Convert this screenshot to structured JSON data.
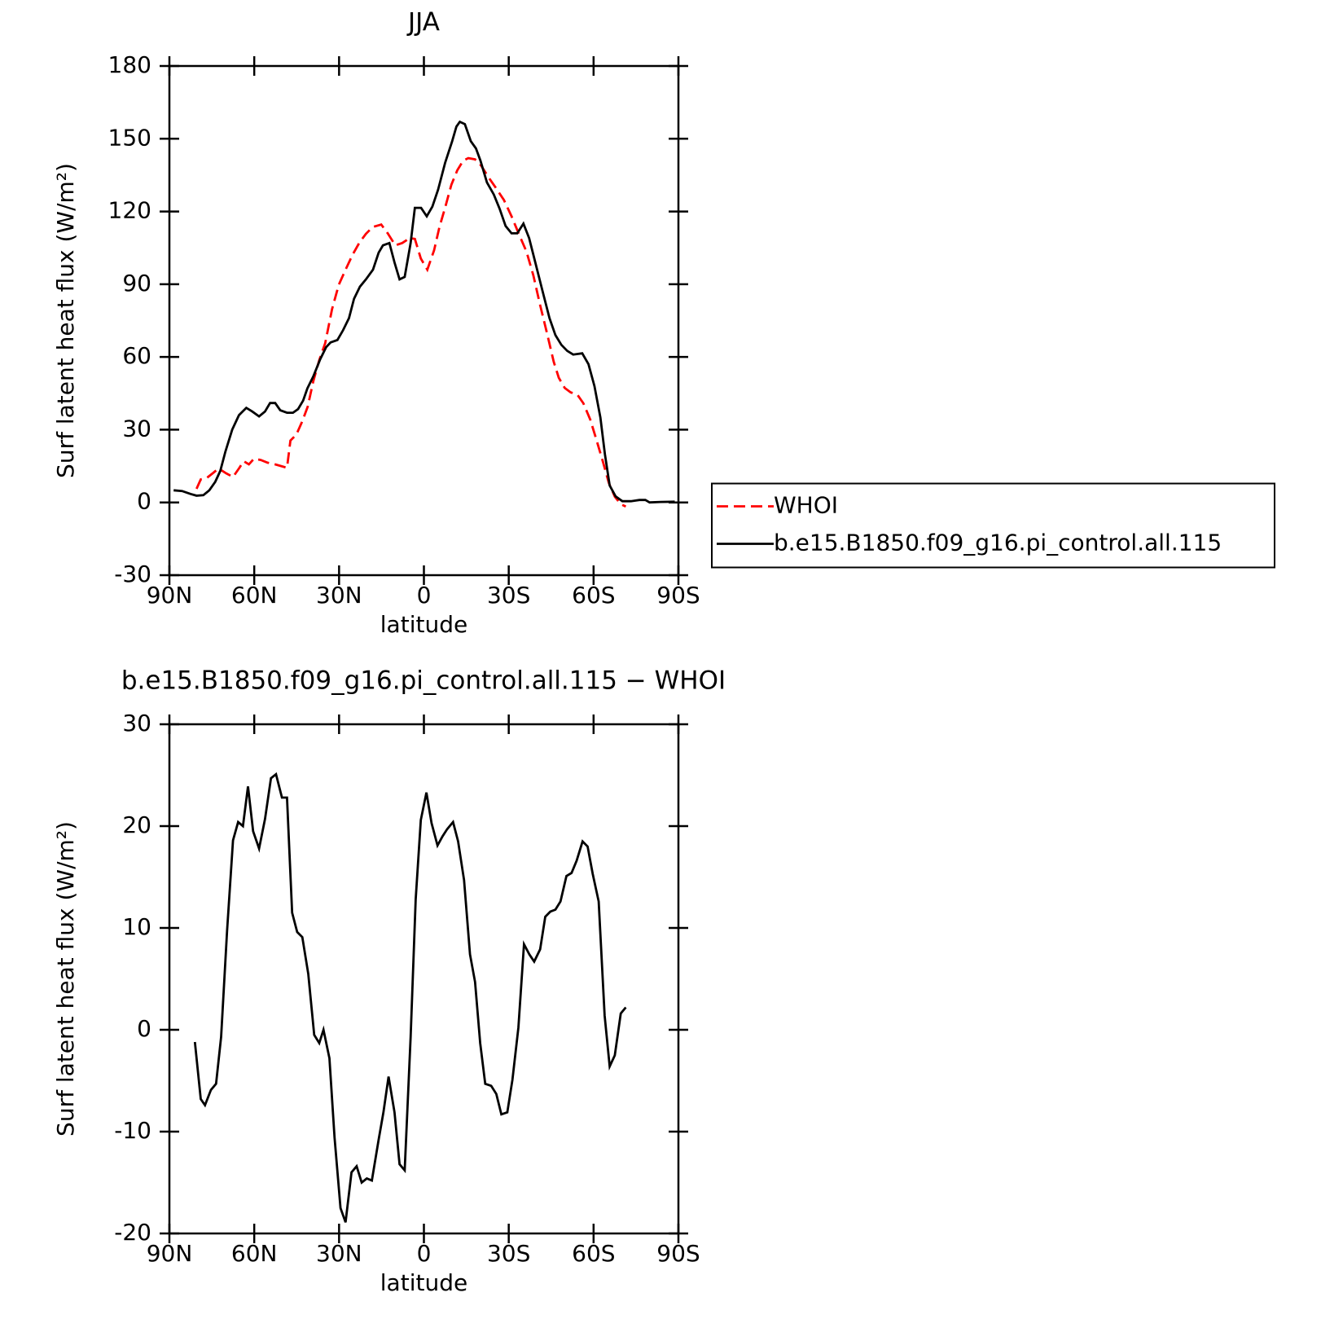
{
  "chart_data": [
    {
      "type": "line",
      "title": "JJA",
      "xlabel": "latitude",
      "ylabel": "Surf latent heat flux (W/m²)",
      "xlim": [
        90,
        -90
      ],
      "xticks": [
        {
          "value": 90,
          "label": "90N"
        },
        {
          "value": 60,
          "label": "60N"
        },
        {
          "value": 30,
          "label": "30N"
        },
        0,
        {
          "value": -30,
          "label": "30S"
        },
        {
          "value": -60,
          "label": "60S"
        },
        {
          "value": -90,
          "label": "90S"
        }
      ],
      "ylim": [
        -30,
        180
      ],
      "yticks": [
        -30,
        0,
        30,
        60,
        90,
        120,
        150,
        180
      ],
      "legend": "right",
      "series": [
        {
          "name": "WHOI",
          "color": "#ff0000",
          "style": "dashed",
          "x": [
            80.4,
            78.9,
            76.8,
            74.7,
            72.6,
            69.9,
            67.5,
            65.4,
            63.7,
            61.9,
            60.1,
            57.7,
            55.3,
            52.6,
            49.6,
            48.4,
            47.2,
            45.1,
            43,
            41.1,
            39.1,
            37,
            34.9,
            32.5,
            30.1,
            27.7,
            25.3,
            22.9,
            20.5,
            18.1,
            15.1,
            12.8,
            10.1,
            7.7,
            5,
            3.2,
            1.1,
            -1.2,
            -3.6,
            -5.5,
            -7.6,
            -9.7,
            -11.8,
            -13.9,
            -15.7,
            -18.1,
            -20.2,
            -22.6,
            -25.3,
            -28.3,
            -31,
            -33.7,
            -36.3,
            -38.7,
            -41.1,
            -43.5,
            -45.9,
            -47.7,
            -49.8,
            -51.9,
            -54.3,
            -56.4,
            -58.8,
            -60.9,
            -63.3,
            -65.4,
            -67.5,
            -69.6,
            -71.4
          ],
          "values": [
            5.6,
            9.5,
            10.1,
            12,
            14,
            12,
            10.5,
            14,
            17,
            15.7,
            18,
            17.5,
            16.4,
            15.7,
            14.7,
            14.3,
            25.5,
            28,
            33.5,
            39.5,
            50,
            58.7,
            65.7,
            79.7,
            89.8,
            96,
            102,
            107,
            110.8,
            113.6,
            114.6,
            111,
            106,
            107,
            109,
            108.7,
            100.6,
            96,
            104,
            113.6,
            122,
            131,
            137,
            141,
            142,
            141.5,
            139,
            134.5,
            130,
            124.7,
            118,
            110.4,
            103.4,
            93.6,
            81.4,
            70,
            58,
            51.4,
            47.2,
            45.4,
            44.4,
            40.9,
            34.2,
            26.2,
            16.8,
            8,
            2.4,
            -0.7,
            -1.7
          ]
        },
        {
          "name": "b.e15.B1850.f09_g16.pi_control.all.115",
          "color": "#000000",
          "style": "solid",
          "x": [
            88.5,
            85.5,
            82.5,
            80.4,
            78,
            75.9,
            73.8,
            72,
            70.2,
            67.8,
            65.4,
            62.8,
            60.7,
            58.3,
            56.2,
            54.4,
            52.6,
            50.8,
            48.4,
            46.3,
            44.5,
            42.7,
            41.2,
            39.1,
            36.7,
            34.6,
            33,
            30.6,
            28.6,
            26.5,
            24.7,
            22.6,
            20.5,
            18,
            16,
            14.5,
            12.2,
            10.4,
            8.6,
            6.8,
            4.7,
            3.2,
            1,
            -1,
            -3,
            -5,
            -7.5,
            -10,
            -11.5,
            -12.7,
            -14.5,
            -16.6,
            -18.4,
            -20,
            -22.3,
            -24.7,
            -26.8,
            -28.9,
            -31,
            -33,
            -35.2,
            -37.2,
            -39.6,
            -42,
            -44.4,
            -46.5,
            -48.6,
            -50.7,
            -52.8,
            -56,
            -58.2,
            -60.3,
            -62.4,
            -64,
            -65.7,
            -67.8,
            -70.2,
            -73.2,
            -76.2,
            -78.3,
            -79.8,
            -83.7,
            -88.7
          ],
          "values": [
            5,
            4.7,
            3.5,
            2.8,
            3,
            5,
            8.5,
            13,
            21,
            30,
            36,
            39,
            37.5,
            35.5,
            37.5,
            41,
            41,
            38,
            37,
            37,
            38.5,
            42,
            47,
            52,
            59,
            64,
            66,
            67,
            71,
            76,
            84,
            89,
            92,
            96,
            103,
            106,
            107,
            99,
            92,
            93,
            107,
            121.5,
            121.5,
            118,
            122,
            129,
            140,
            149,
            155,
            157,
            156,
            149,
            146,
            141,
            132,
            127,
            121,
            114,
            111,
            111,
            115,
            109,
            98,
            87,
            76,
            69,
            65,
            62.5,
            61,
            61.5,
            57,
            48,
            35,
            20,
            7,
            2.5,
            0.5,
            0.5,
            1,
            1,
            0,
            0.2,
            0.3
          ]
        }
      ]
    },
    {
      "type": "line",
      "title": "b.e15.B1850.f09_g16.pi_control.all.115 − WHOI",
      "xlabel": "latitude",
      "ylabel": "Surf latent heat flux (W/m²)",
      "xlim": [
        90,
        -90
      ],
      "xticks": [
        {
          "value": 90,
          "label": "90N"
        },
        {
          "value": 60,
          "label": "60N"
        },
        {
          "value": 30,
          "label": "30N"
        },
        0,
        {
          "value": -30,
          "label": "30S"
        },
        {
          "value": -60,
          "label": "60S"
        },
        {
          "value": -90,
          "label": "90S"
        }
      ],
      "ylim": [
        -20,
        30
      ],
      "yticks": [
        -20,
        -10,
        0,
        10,
        20,
        30
      ],
      "series": [
        {
          "color": "#000000",
          "style": "solid",
          "x": [
            81,
            78.9,
            77.4,
            75.3,
            73.5,
            71.7,
            69.6,
            67.5,
            65.7,
            64,
            62.2,
            60.4,
            58.3,
            56.2,
            54.1,
            52.3,
            50.2,
            48.4,
            46.6,
            44.8,
            43,
            40.9,
            38.8,
            37,
            35.5,
            33.4,
            31.6,
            29.5,
            27.7,
            25.6,
            23.8,
            22,
            20.2,
            18.4,
            16,
            14.3,
            12.5,
            10.4,
            8.6,
            6.8,
            4.7,
            2.9,
            1.1,
            -0.9,
            -2.7,
            -4.8,
            -6.6,
            -8.2,
            -10.3,
            -12.1,
            -14.2,
            -16.3,
            -18.1,
            -19.9,
            -21.7,
            -23.8,
            -25.6,
            -27.4,
            -29.5,
            -31.3,
            -33.4,
            -35.4,
            -37.3,
            -39,
            -41.1,
            -42.9,
            -44.7,
            -46.5,
            -48.3,
            -50.4,
            -52.2,
            -54,
            -56.1,
            -57.9,
            -59.7,
            -61.8,
            -63.9,
            -65.7,
            -67.5,
            -69.6,
            -71.4
          ],
          "values": [
            -1.2,
            -6.8,
            -7.4,
            -5.9,
            -5.3,
            -0.7,
            9.7,
            18.6,
            20.4,
            20,
            23.9,
            19.5,
            17.8,
            20.7,
            24.7,
            25.1,
            22.8,
            22.8,
            11.5,
            9.6,
            9.1,
            5.5,
            -0.5,
            -1.3,
            0,
            -2.8,
            -10.6,
            -17.5,
            -18.9,
            -14,
            -13.4,
            -15,
            -14.6,
            -14.8,
            -10.8,
            -8.1,
            -4.6,
            -8.1,
            -13.2,
            -13.8,
            -0.7,
            12.8,
            20.6,
            23.3,
            20.3,
            18.1,
            19,
            19.7,
            20.4,
            18.5,
            14.7,
            7.4,
            4.7,
            -1.3,
            -5.3,
            -5.5,
            -6.3,
            -8.3,
            -8.1,
            -4.9,
            0.2,
            8.4,
            7.4,
            6.7,
            7.9,
            11.1,
            11.6,
            11.8,
            12.6,
            15.1,
            15.4,
            16.6,
            18.5,
            18,
            15.3,
            12.6,
            1.4,
            -3.6,
            -2.5,
            1.6,
            2.2
          ]
        }
      ]
    }
  ]
}
